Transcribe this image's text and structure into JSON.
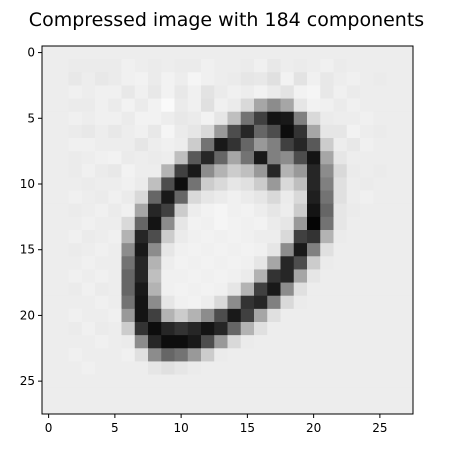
{
  "figure": {
    "title": "Compressed image with 184 components"
  },
  "image": {
    "description_rows": 28,
    "description_cols": 28,
    "colormap": "gray_r",
    "value_range": [
      0,
      1
    ],
    "x_ticks": [
      0,
      5,
      10,
      15,
      20,
      25
    ],
    "y_ticks": [
      0,
      5,
      10,
      15,
      20,
      25
    ],
    "x_tick_labels": [
      "0",
      "5",
      "10",
      "15",
      "20",
      "25"
    ],
    "y_tick_labels": [
      "0",
      "5",
      "10",
      "15",
      "20",
      "25"
    ],
    "pixels": [
      [
        0.07,
        0.07,
        0.07,
        0.07,
        0.07,
        0.07,
        0.07,
        0.07,
        0.07,
        0.07,
        0.07,
        0.07,
        0.07,
        0.07,
        0.07,
        0.07,
        0.07,
        0.07,
        0.07,
        0.07,
        0.07,
        0.07,
        0.07,
        0.07,
        0.07,
        0.07,
        0.07,
        0.07
      ],
      [
        0.07,
        0.07,
        0.08,
        0.08,
        0.08,
        0.08,
        0.06,
        0.07,
        0.08,
        0.07,
        0.08,
        0.08,
        0.06,
        0.07,
        0.07,
        0.08,
        0.06,
        0.09,
        0.07,
        0.08,
        0.07,
        0.06,
        0.08,
        0.07,
        0.07,
        0.07,
        0.07,
        0.07
      ],
      [
        0.07,
        0.07,
        0.09,
        0.07,
        0.09,
        0.08,
        0.06,
        0.05,
        0.08,
        0.05,
        0.07,
        0.04,
        0.06,
        0.07,
        0.08,
        0.1,
        0.09,
        0.12,
        0.05,
        0.11,
        0.06,
        0.09,
        0.07,
        0.06,
        0.07,
        0.08,
        0.07,
        0.07
      ],
      [
        0.07,
        0.07,
        0.06,
        0.07,
        0.06,
        0.06,
        0.09,
        0.06,
        0.09,
        0.05,
        0.09,
        0.06,
        0.11,
        0.08,
        0.06,
        0.07,
        0.05,
        0.08,
        0.11,
        0.05,
        0.04,
        0.09,
        0.06,
        0.08,
        0.07,
        0.07,
        0.07,
        0.07
      ],
      [
        0.07,
        0.07,
        0.08,
        0.08,
        0.06,
        0.08,
        0.05,
        0.08,
        0.05,
        0.02,
        0.08,
        0.06,
        0.12,
        0.06,
        0.08,
        0.15,
        0.35,
        0.45,
        0.35,
        0.1,
        0.05,
        0.06,
        0.08,
        0.06,
        0.07,
        0.07,
        0.07,
        0.07
      ],
      [
        0.07,
        0.07,
        0.06,
        0.07,
        0.06,
        0.06,
        0.08,
        0.05,
        0.05,
        0.07,
        0.09,
        0.08,
        0.05,
        0.1,
        0.25,
        0.55,
        0.75,
        0.92,
        0.9,
        0.5,
        0.15,
        0.08,
        0.07,
        0.07,
        0.06,
        0.07,
        0.07,
        0.07
      ],
      [
        0.07,
        0.07,
        0.08,
        0.09,
        0.07,
        0.09,
        0.07,
        0.06,
        0.09,
        0.04,
        0.08,
        0.1,
        0.15,
        0.4,
        0.7,
        0.85,
        0.6,
        0.7,
        0.95,
        0.8,
        0.35,
        0.1,
        0.1,
        0.05,
        0.07,
        0.08,
        0.07,
        0.07
      ],
      [
        0.07,
        0.07,
        0.06,
        0.06,
        0.07,
        0.07,
        0.07,
        0.1,
        0.07,
        0.06,
        0.07,
        0.2,
        0.55,
        0.9,
        0.8,
        0.6,
        0.4,
        0.5,
        0.75,
        0.85,
        0.65,
        0.2,
        0.07,
        0.09,
        0.06,
        0.07,
        0.07,
        0.07
      ],
      [
        0.07,
        0.07,
        0.08,
        0.07,
        0.06,
        0.05,
        0.08,
        0.07,
        0.08,
        0.07,
        0.25,
        0.65,
        0.85,
        0.6,
        0.35,
        0.55,
        0.9,
        0.5,
        0.45,
        0.7,
        0.92,
        0.35,
        0.1,
        0.07,
        0.07,
        0.07,
        0.07,
        0.07
      ],
      [
        0.07,
        0.07,
        0.08,
        0.06,
        0.08,
        0.09,
        0.05,
        0.07,
        0.07,
        0.3,
        0.75,
        0.9,
        0.45,
        0.3,
        0.2,
        0.25,
        0.4,
        0.85,
        0.3,
        0.4,
        0.85,
        0.45,
        0.15,
        0.08,
        0.07,
        0.08,
        0.07,
        0.07
      ],
      [
        0.07,
        0.07,
        0.07,
        0.08,
        0.07,
        0.07,
        0.06,
        0.08,
        0.25,
        0.7,
        0.95,
        0.55,
        0.2,
        0.15,
        0.1,
        0.12,
        0.2,
        0.4,
        0.15,
        0.25,
        0.85,
        0.5,
        0.12,
        0.07,
        0.08,
        0.07,
        0.07,
        0.07
      ],
      [
        0.07,
        0.07,
        0.06,
        0.07,
        0.08,
        0.06,
        0.08,
        0.15,
        0.6,
        0.9,
        0.6,
        0.15,
        0.1,
        0.08,
        0.06,
        0.08,
        0.1,
        0.15,
        0.08,
        0.15,
        0.88,
        0.55,
        0.12,
        0.07,
        0.06,
        0.07,
        0.07,
        0.07
      ],
      [
        0.07,
        0.07,
        0.08,
        0.07,
        0.06,
        0.08,
        0.06,
        0.35,
        0.85,
        0.75,
        0.2,
        0.07,
        0.05,
        0.04,
        0.06,
        0.05,
        0.07,
        0.1,
        0.07,
        0.2,
        0.92,
        0.6,
        0.1,
        0.08,
        0.07,
        0.07,
        0.07,
        0.07
      ],
      [
        0.07,
        0.07,
        0.07,
        0.06,
        0.07,
        0.07,
        0.15,
        0.6,
        0.92,
        0.45,
        0.1,
        0.05,
        0.06,
        0.04,
        0.05,
        0.06,
        0.05,
        0.08,
        0.1,
        0.4,
        0.98,
        0.55,
        0.1,
        0.07,
        0.07,
        0.07,
        0.07,
        0.07
      ],
      [
        0.07,
        0.07,
        0.06,
        0.08,
        0.07,
        0.06,
        0.3,
        0.85,
        0.7,
        0.2,
        0.08,
        0.06,
        0.05,
        0.06,
        0.05,
        0.06,
        0.07,
        0.07,
        0.15,
        0.75,
        0.8,
        0.3,
        0.08,
        0.07,
        0.07,
        0.07,
        0.07,
        0.07
      ],
      [
        0.07,
        0.07,
        0.08,
        0.07,
        0.06,
        0.07,
        0.45,
        0.9,
        0.45,
        0.1,
        0.06,
        0.05,
        0.06,
        0.05,
        0.06,
        0.05,
        0.06,
        0.1,
        0.45,
        0.9,
        0.5,
        0.12,
        0.07,
        0.07,
        0.07,
        0.07,
        0.07,
        0.07
      ],
      [
        0.07,
        0.07,
        0.07,
        0.06,
        0.07,
        0.07,
        0.55,
        0.85,
        0.3,
        0.07,
        0.05,
        0.06,
        0.05,
        0.06,
        0.05,
        0.06,
        0.1,
        0.35,
        0.85,
        0.7,
        0.2,
        0.08,
        0.07,
        0.07,
        0.07,
        0.07,
        0.07,
        0.07
      ],
      [
        0.07,
        0.07,
        0.06,
        0.07,
        0.06,
        0.07,
        0.6,
        0.85,
        0.25,
        0.06,
        0.06,
        0.05,
        0.06,
        0.05,
        0.06,
        0.08,
        0.3,
        0.8,
        0.85,
        0.35,
        0.1,
        0.07,
        0.07,
        0.07,
        0.07,
        0.07,
        0.07,
        0.07
      ],
      [
        0.07,
        0.07,
        0.08,
        0.06,
        0.08,
        0.07,
        0.6,
        0.9,
        0.3,
        0.06,
        0.05,
        0.06,
        0.05,
        0.06,
        0.1,
        0.3,
        0.75,
        0.9,
        0.45,
        0.12,
        0.07,
        0.07,
        0.07,
        0.07,
        0.07,
        0.07,
        0.07,
        0.07
      ],
      [
        0.07,
        0.07,
        0.07,
        0.07,
        0.06,
        0.07,
        0.55,
        0.92,
        0.45,
        0.1,
        0.06,
        0.05,
        0.07,
        0.15,
        0.45,
        0.8,
        0.85,
        0.5,
        0.15,
        0.08,
        0.07,
        0.07,
        0.07,
        0.07,
        0.07,
        0.07,
        0.07,
        0.07
      ],
      [
        0.07,
        0.07,
        0.06,
        0.07,
        0.07,
        0.06,
        0.4,
        0.92,
        0.75,
        0.3,
        0.2,
        0.3,
        0.45,
        0.7,
        0.9,
        0.75,
        0.35,
        0.12,
        0.07,
        0.07,
        0.07,
        0.07,
        0.07,
        0.07,
        0.07,
        0.07,
        0.07,
        0.07
      ],
      [
        0.07,
        0.07,
        0.08,
        0.06,
        0.08,
        0.07,
        0.2,
        0.8,
        0.95,
        0.85,
        0.8,
        0.85,
        0.92,
        0.85,
        0.6,
        0.3,
        0.12,
        0.07,
        0.07,
        0.07,
        0.07,
        0.07,
        0.07,
        0.07,
        0.07,
        0.07,
        0.07,
        0.07
      ],
      [
        0.07,
        0.07,
        0.07,
        0.07,
        0.06,
        0.07,
        0.08,
        0.45,
        0.85,
        0.95,
        0.95,
        0.9,
        0.7,
        0.4,
        0.15,
        0.08,
        0.07,
        0.07,
        0.07,
        0.07,
        0.07,
        0.07,
        0.07,
        0.07,
        0.07,
        0.07,
        0.07,
        0.07
      ],
      [
        0.07,
        0.07,
        0.06,
        0.07,
        0.07,
        0.07,
        0.06,
        0.12,
        0.45,
        0.6,
        0.55,
        0.4,
        0.2,
        0.08,
        0.07,
        0.07,
        0.07,
        0.07,
        0.07,
        0.07,
        0.07,
        0.07,
        0.07,
        0.07,
        0.07,
        0.07,
        0.07,
        0.07
      ],
      [
        0.07,
        0.07,
        0.07,
        0.06,
        0.07,
        0.07,
        0.07,
        0.07,
        0.1,
        0.12,
        0.1,
        0.08,
        0.07,
        0.07,
        0.07,
        0.07,
        0.07,
        0.07,
        0.07,
        0.07,
        0.07,
        0.07,
        0.07,
        0.07,
        0.07,
        0.07,
        0.07,
        0.07
      ],
      [
        0.07,
        0.07,
        0.07,
        0.07,
        0.07,
        0.07,
        0.07,
        0.07,
        0.07,
        0.07,
        0.07,
        0.07,
        0.07,
        0.07,
        0.07,
        0.07,
        0.07,
        0.07,
        0.07,
        0.07,
        0.07,
        0.07,
        0.07,
        0.07,
        0.07,
        0.07,
        0.07,
        0.07
      ],
      [
        0.07,
        0.07,
        0.07,
        0.07,
        0.07,
        0.07,
        0.07,
        0.07,
        0.07,
        0.07,
        0.07,
        0.07,
        0.07,
        0.07,
        0.07,
        0.07,
        0.07,
        0.07,
        0.07,
        0.07,
        0.07,
        0.07,
        0.07,
        0.07,
        0.07,
        0.07,
        0.07,
        0.07
      ],
      [
        0.07,
        0.07,
        0.07,
        0.07,
        0.07,
        0.07,
        0.07,
        0.07,
        0.07,
        0.07,
        0.07,
        0.07,
        0.07,
        0.07,
        0.07,
        0.07,
        0.07,
        0.07,
        0.07,
        0.07,
        0.07,
        0.07,
        0.07,
        0.07,
        0.07,
        0.07,
        0.07,
        0.07
      ]
    ]
  }
}
